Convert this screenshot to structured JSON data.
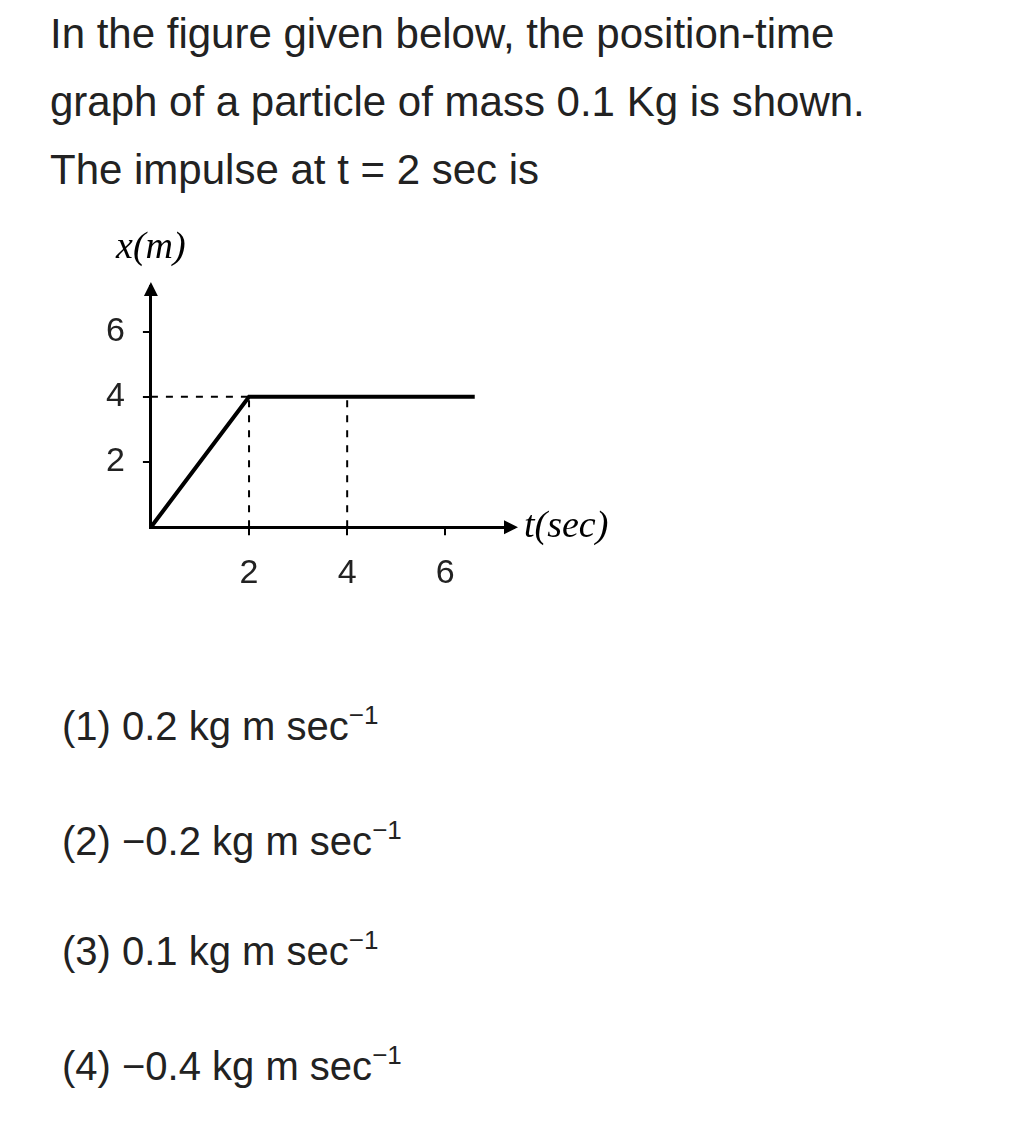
{
  "question": {
    "lines": [
      "In the figure given below, the position-time",
      "graph of a particle of mass 0.1 Kg is shown.",
      "The impulse at t = 2 sec is"
    ]
  },
  "chart_data": {
    "type": "line",
    "x_label": "t(sec)",
    "y_label": "x(m)",
    "xlim": [
      0,
      7.4
    ],
    "ylim": [
      0,
      7.4
    ],
    "xticks": [
      2,
      4,
      6
    ],
    "yticks": [
      2,
      4,
      6
    ],
    "grid": false,
    "series": [
      {
        "x": [
          0,
          2,
          6.6
        ],
        "values": [
          0,
          4,
          4
        ],
        "color": "#000000",
        "line_style": "solid"
      },
      {
        "x": [
          0,
          2
        ],
        "values": [
          4,
          4
        ],
        "color": "#000000",
        "line_style": "dashed"
      },
      {
        "x": [
          2,
          2
        ],
        "values": [
          0,
          4
        ],
        "color": "#000000",
        "line_style": "dashed"
      },
      {
        "x": [
          4,
          4
        ],
        "values": [
          0,
          4
        ],
        "color": "#000000",
        "line_style": "dashed"
      }
    ]
  },
  "options": [
    {
      "number": "(1)",
      "text": "0.2 kg m sec",
      "sup": "−1"
    },
    {
      "number": "(2)",
      "text": "−0.2 kg m sec",
      "sup": "−1"
    },
    {
      "number": "(3)",
      "text": "0.1 kg m sec",
      "sup": "−1"
    },
    {
      "number": "(4)",
      "text": "−0.4 kg m sec",
      "sup": "−1"
    }
  ]
}
